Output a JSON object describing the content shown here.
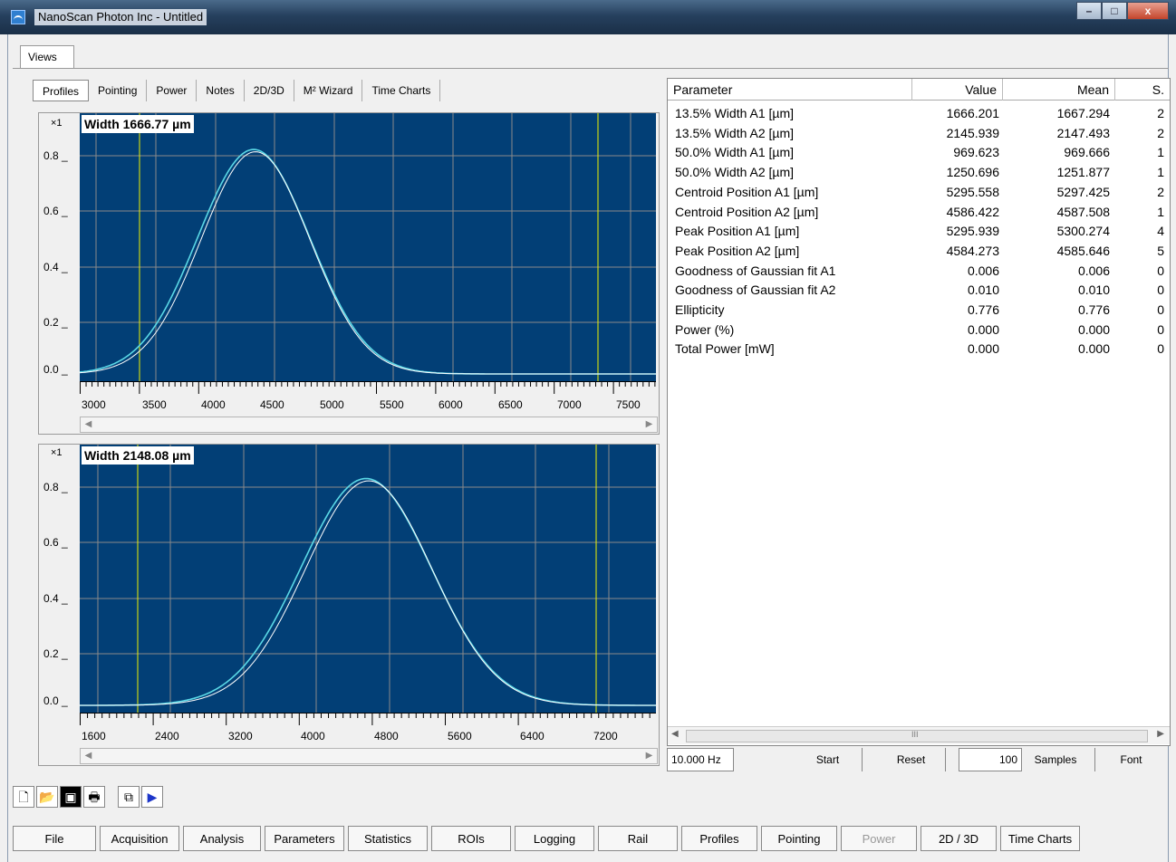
{
  "window": {
    "title": "NanoScan Photon Inc - Untitled",
    "min": "–",
    "max": "□",
    "close": "x"
  },
  "views_tab": "Views",
  "subtabs": [
    "Profiles",
    "Pointing",
    "Power",
    "Notes",
    "2D/3D",
    "M² Wizard",
    "Time Charts"
  ],
  "plot1": {
    "scale": "×1",
    "title": "Width 1666.77 µm",
    "yticks": [
      "0.8 _",
      "0.6 _",
      "0.4 _",
      "0.2 _",
      "0.0 _"
    ],
    "xticks": [
      "3000",
      "3500",
      "4000",
      "4500",
      "5000",
      "5500",
      "6000",
      "6500",
      "7000",
      "7500"
    ]
  },
  "plot2": {
    "scale": "×1",
    "title": "Width 2148.08 µm",
    "yticks": [
      "0.8 _",
      "0.6 _",
      "0.4 _",
      "0.2 _",
      "0.0 _"
    ],
    "xticks": [
      "1600",
      "2400",
      "3200",
      "4000",
      "4800",
      "5600",
      "6400",
      "7200"
    ]
  },
  "table": {
    "headers": [
      "Parameter",
      "Value",
      "Mean",
      "S."
    ],
    "rows": [
      [
        "13.5% Width A1 [µm]",
        "1666.201",
        "1667.294",
        "2"
      ],
      [
        "13.5% Width A2 [µm]",
        "2145.939",
        "2147.493",
        "2"
      ],
      [
        "50.0% Width A1 [µm]",
        "969.623",
        "969.666",
        "1"
      ],
      [
        "50.0% Width A2 [µm]",
        "1250.696",
        "1251.877",
        "1"
      ],
      [
        "Centroid Position A1 [µm]",
        "5295.558",
        "5297.425",
        "2"
      ],
      [
        "Centroid Position A2 [µm]",
        "4586.422",
        "4587.508",
        "1"
      ],
      [
        "Peak Position A1 [µm]",
        "5295.939",
        "5300.274",
        "4"
      ],
      [
        "Peak Position A2 [µm]",
        "4584.273",
        "4585.646",
        "5"
      ],
      [
        "Goodness of Gaussian fit A1",
        "0.006",
        "0.006",
        "0"
      ],
      [
        "Goodness of Gaussian fit A2",
        "0.010",
        "0.010",
        "0"
      ],
      [
        "Ellipticity",
        "0.776",
        "0.776",
        "0"
      ],
      [
        "Power (%)",
        "0.000",
        "0.000",
        "0"
      ],
      [
        "Total Power [mW]",
        "0.000",
        "0.000",
        "0"
      ]
    ]
  },
  "table_scroll_mark": "III",
  "stats_bar": {
    "rate": "10.000 Hz",
    "start": "Start",
    "reset": "Reset",
    "samples_count": "100",
    "samples_label": "Samples",
    "font": "Font"
  },
  "toolbar_icons": [
    "new-icon",
    "open-icon",
    "save-icon",
    "print-icon",
    "copy-icon",
    "play-icon"
  ],
  "menu": [
    "File",
    "Acquisition",
    "Analysis",
    "Parameters",
    "Statistics",
    "ROIs",
    "Logging",
    "Rail"
  ],
  "views_menu": [
    "Profiles",
    "Pointing",
    "Power",
    "2D / 3D",
    "Time Charts"
  ],
  "colors": {
    "plot_bg": "#023f76",
    "curve": "#5ad8e6",
    "cursor": "#f0f000"
  }
}
